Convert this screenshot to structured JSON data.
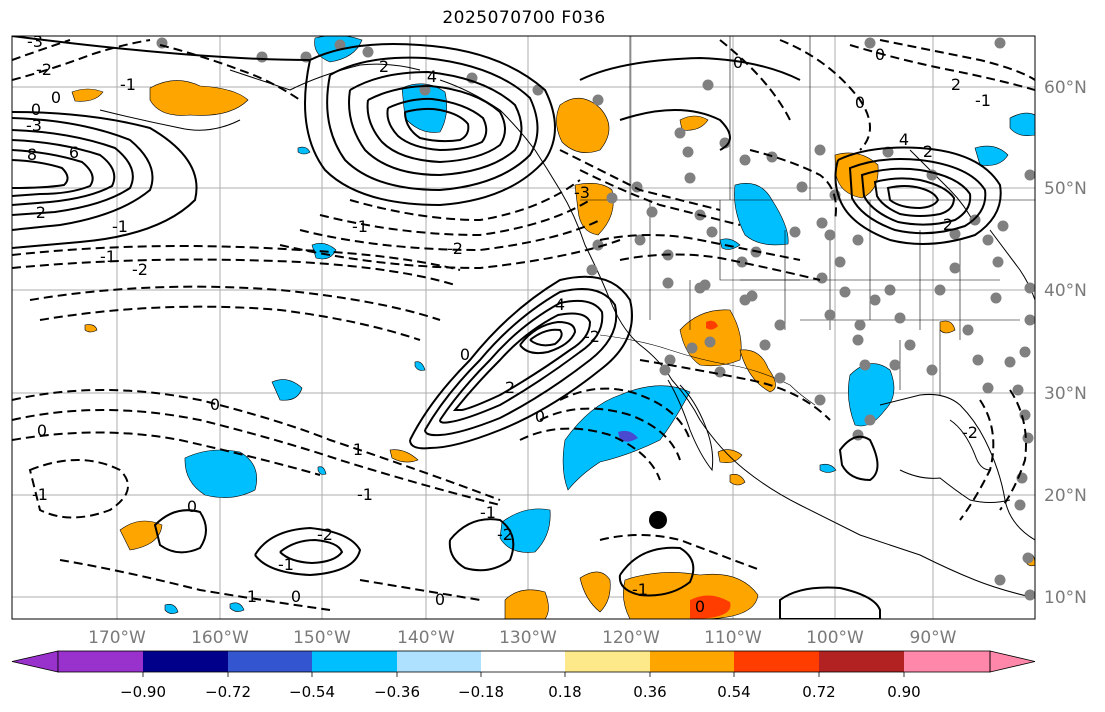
{
  "title": "2025070700 F036",
  "map": {
    "lon_labels": [
      "170°W",
      "160°W",
      "150°W",
      "140°W",
      "130°W",
      "120°W",
      "110°W",
      "100°W",
      "90°W"
    ],
    "lat_labels": [
      "60°N",
      "50°N",
      "40°N",
      "30°N",
      "20°N",
      "10°N"
    ],
    "contour_labels": [
      "-3",
      "-2",
      "0",
      "-1",
      "0",
      "-3",
      "8",
      "6",
      "-2",
      "-1",
      "4",
      "2",
      "-2",
      "-1",
      "4",
      "2",
      "0",
      "-2",
      "-1",
      "-3",
      "-2",
      "0",
      "2",
      "-1",
      "4",
      "2",
      "2",
      "0",
      "-1",
      "0",
      "0",
      "-2",
      "-1",
      "-2",
      "-1",
      "0",
      "1",
      "0",
      "-1",
      "0",
      "1",
      "0",
      "-1",
      "0",
      "0",
      "-2"
    ],
    "colors": {
      "positive_fill": "#ffa500",
      "positive_strong": "#ff4500",
      "negative_fill": "#00bfff",
      "negative_strong": "#3355cc",
      "station_dot": "#808080",
      "gridline": "#888888"
    }
  },
  "colorbar": {
    "labels": [
      "−0.90",
      "−0.72",
      "−0.54",
      "−0.36",
      "−0.18",
      "0.18",
      "0.36",
      "0.54",
      "0.72",
      "0.90"
    ],
    "segments": [
      "#9932cc",
      "#00008b",
      "#3455d0",
      "#00bfff",
      "#aee0ff",
      "#ffffff",
      "#fee98a",
      "#ffa500",
      "#ff3d00",
      "#b22222",
      "#ff88aa",
      "#ff88aa"
    ]
  }
}
